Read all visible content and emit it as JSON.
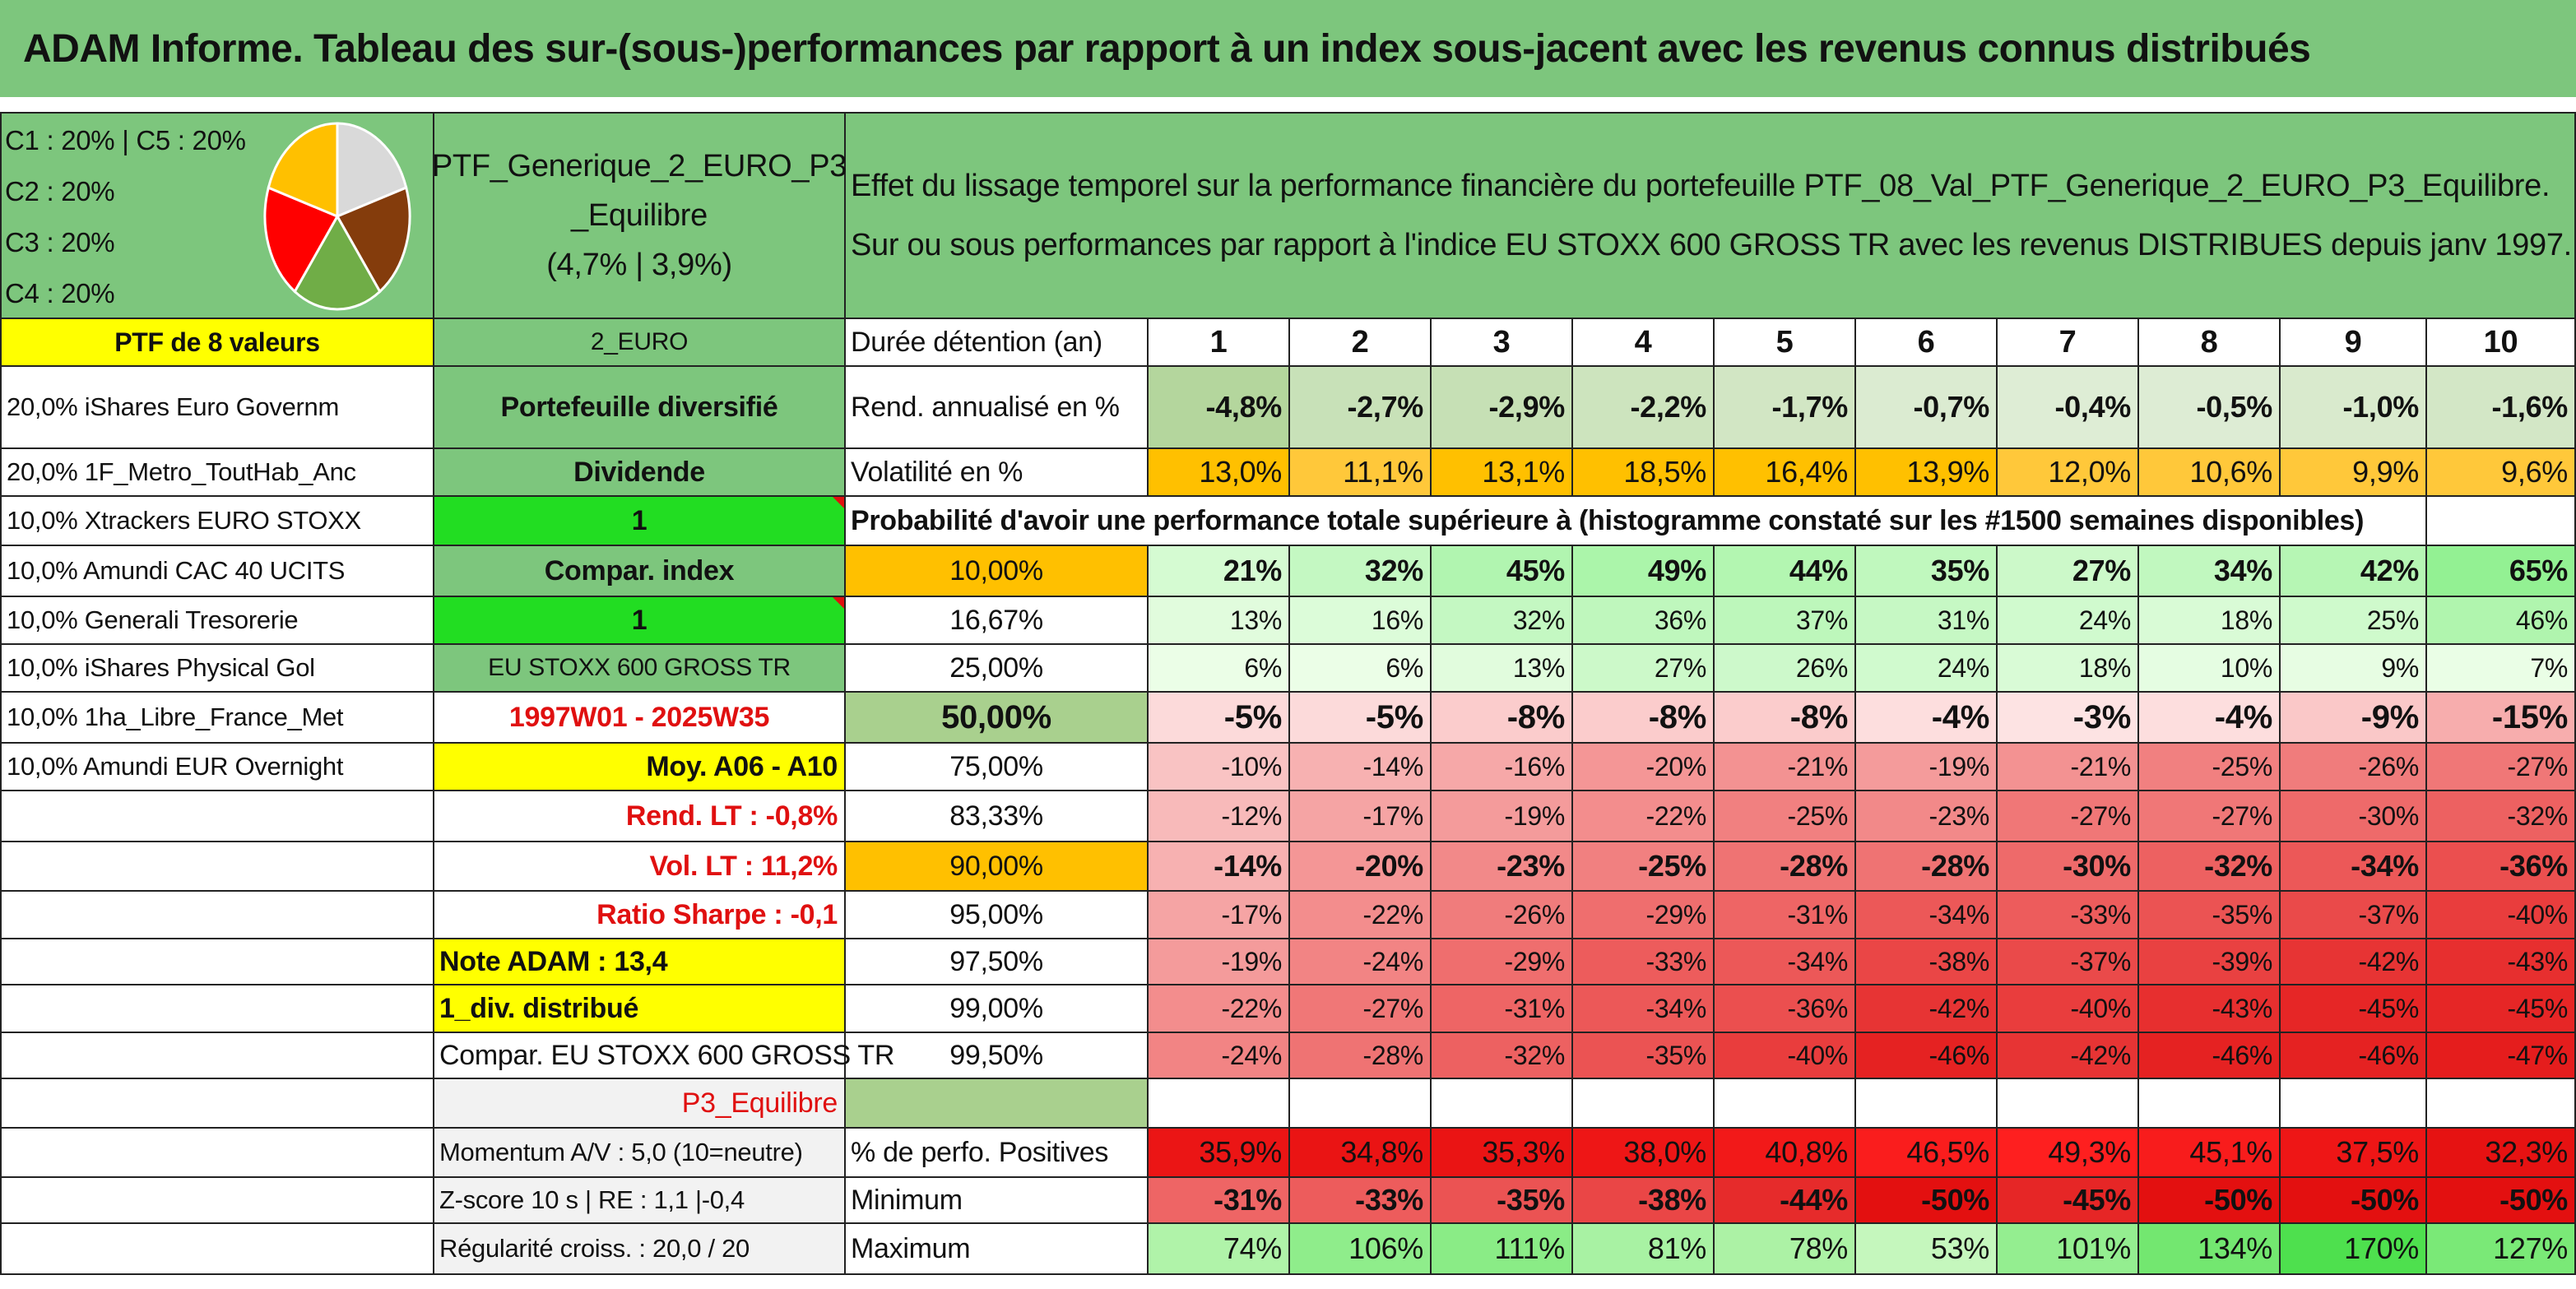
{
  "title": "ADAM Informe. Tableau des sur-(sous-)performances par rapport à un index sous-jacent avec les revenus connus distribués",
  "legend": [
    "C1 : 20% | C5 : 20%",
    "C2 : 20%",
    "C3 : 20%",
    "C4 : 20%"
  ],
  "pie": {
    "slices": [
      {
        "name": "C1",
        "value": 20,
        "color": "#d9d9d9"
      },
      {
        "name": "C2",
        "value": 20,
        "color": "#843c0c"
      },
      {
        "name": "C3",
        "value": 20,
        "color": "#70ad47"
      },
      {
        "name": "C4",
        "value": 20,
        "color": "#ff0000"
      },
      {
        "name": "C5",
        "value": 20,
        "color": "#ffc000"
      }
    ]
  },
  "portfolio": {
    "name_line1": "PTF_Generique_2_EURO_P3",
    "name_line2": "_Equilibre",
    "name_line3": "(4,7% | 3,9%)"
  },
  "description": {
    "line1": "Effet du lissage temporel sur la performance financière du portefeuille PTF_08_Val_PTF_Generique_2_EURO_P3_Equilibre.",
    "line2": "Sur ou sous performances par rapport à l'indice EU STOXX 600 GROSS TR avec les revenus DISTRIBUES depuis janv 1997."
  },
  "holdings_header": "PTF de 8 valeurs",
  "holdings": [
    "20,0% iShares Euro Governm",
    "20,0% 1F_Metro_ToutHab_Anc",
    "10,0% Xtrackers EURO STOXX",
    "10,0% Amundi CAC 40 UCITS",
    "10,0% Generali Tresorerie",
    "10,0% iShares Physical Gol",
    "10,0% 1ha_Libre_France_Met",
    "10,0% Amundi EUR Overnight"
  ],
  "info": {
    "currency": "2_EURO",
    "type": "Portefeuille diversifié",
    "dividend": "Dividende",
    "v1": "1",
    "compar_index": "Compar. index",
    "v2": "1",
    "index_name": "EU STOXX 600 GROSS TR",
    "period": "1997W01 - 2025W35",
    "moy": "Moy. A06 - A10",
    "rend_lt": "Rend. LT : -0,8%",
    "vol_lt": "Vol. LT : 11,2%",
    "sharpe": "Ratio Sharpe : -0,1",
    "note": "Note ADAM : 13,4",
    "div": "1_div. distribué",
    "compar": "Compar. EU STOXX 600 GROSS TR",
    "profile": "P3_Equilibre",
    "momentum": "Momentum A/V : 5,0 (10=neutre)",
    "zscore": "Z-score 10 s | RE : 1,1 |-0,4",
    "regularite": "Régularité croiss. : 20,0 / 20"
  },
  "table": {
    "duration_label": "Durée détention (an)",
    "years": [
      "1",
      "2",
      "3",
      "4",
      "5",
      "6",
      "7",
      "8",
      "9",
      "10"
    ],
    "rend_label": "Rend. annualisé en %",
    "rend": [
      "-4,8%",
      "-2,7%",
      "-2,9%",
      "-2,2%",
      "-1,7%",
      "-0,7%",
      "-0,4%",
      "-0,5%",
      "-1,0%",
      "-1,6%"
    ],
    "vol_label": "Volatilité en %",
    "vol": [
      "13,0%",
      "11,1%",
      "13,1%",
      "18,5%",
      "16,4%",
      "13,9%",
      "12,0%",
      "10,6%",
      "9,9%",
      "9,6%"
    ],
    "prob_label": "Probabilité d'avoir une performance totale supérieure à (histogramme constaté sur les #1500 semaines disponibles)",
    "quantiles": [
      {
        "label": "10,00%",
        "values": [
          "21%",
          "32%",
          "45%",
          "49%",
          "44%",
          "35%",
          "27%",
          "34%",
          "42%",
          "65%"
        ]
      },
      {
        "label": "16,67%",
        "values": [
          "13%",
          "16%",
          "32%",
          "36%",
          "37%",
          "31%",
          "24%",
          "18%",
          "25%",
          "46%"
        ]
      },
      {
        "label": "25,00%",
        "values": [
          "6%",
          "6%",
          "13%",
          "27%",
          "26%",
          "24%",
          "18%",
          "10%",
          "9%",
          "7%"
        ]
      },
      {
        "label": "50,00%",
        "values": [
          "-5%",
          "-5%",
          "-8%",
          "-8%",
          "-8%",
          "-4%",
          "-3%",
          "-4%",
          "-9%",
          "-15%"
        ]
      },
      {
        "label": "75,00%",
        "values": [
          "-10%",
          "-14%",
          "-16%",
          "-20%",
          "-21%",
          "-19%",
          "-21%",
          "-25%",
          "-26%",
          "-27%"
        ]
      },
      {
        "label": "83,33%",
        "values": [
          "-12%",
          "-17%",
          "-19%",
          "-22%",
          "-25%",
          "-23%",
          "-27%",
          "-27%",
          "-30%",
          "-32%"
        ]
      },
      {
        "label": "90,00%",
        "values": [
          "-14%",
          "-20%",
          "-23%",
          "-25%",
          "-28%",
          "-28%",
          "-30%",
          "-32%",
          "-34%",
          "-36%"
        ]
      },
      {
        "label": "95,00%",
        "values": [
          "-17%",
          "-22%",
          "-26%",
          "-29%",
          "-31%",
          "-34%",
          "-33%",
          "-35%",
          "-37%",
          "-40%"
        ]
      },
      {
        "label": "97,50%",
        "values": [
          "-19%",
          "-24%",
          "-29%",
          "-33%",
          "-34%",
          "-38%",
          "-37%",
          "-39%",
          "-42%",
          "-43%"
        ]
      },
      {
        "label": "99,00%",
        "values": [
          "-22%",
          "-27%",
          "-31%",
          "-34%",
          "-36%",
          "-42%",
          "-40%",
          "-43%",
          "-45%",
          "-45%"
        ]
      },
      {
        "label": "99,50%",
        "values": [
          "-24%",
          "-28%",
          "-32%",
          "-35%",
          "-40%",
          "-46%",
          "-42%",
          "-46%",
          "-46%",
          "-47%"
        ]
      }
    ],
    "pos_label": "% de perfo. Positives",
    "pos": [
      "35,9%",
      "34,8%",
      "35,3%",
      "38,0%",
      "40,8%",
      "46,5%",
      "49,3%",
      "45,1%",
      "37,5%",
      "32,3%"
    ],
    "min_label": "Minimum",
    "min": [
      "-31%",
      "-33%",
      "-35%",
      "-38%",
      "-44%",
      "-50%",
      "-45%",
      "-50%",
      "-50%",
      "-50%"
    ],
    "max_label": "Maximum",
    "max": [
      "74%",
      "106%",
      "111%",
      "81%",
      "78%",
      "53%",
      "101%",
      "134%",
      "170%",
      "127%"
    ]
  }
}
